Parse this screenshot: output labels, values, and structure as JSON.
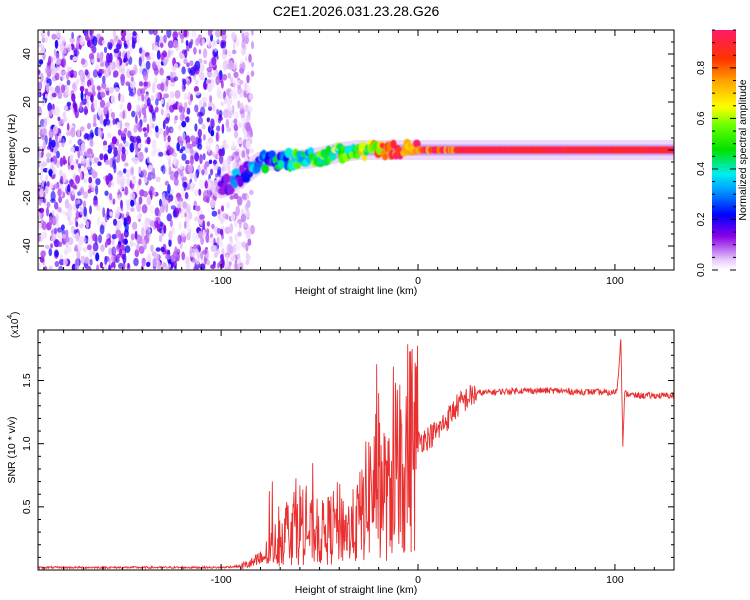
{
  "title": "C2E1.2026.031.23.28.G26",
  "chart_data": [
    {
      "type": "heatmap",
      "title": "C2E1.2026.031.23.28.G26",
      "xlabel": "Height of straight line (km)",
      "ylabel": "Frequency (Hz)",
      "xlim": [
        -193,
        130
      ],
      "ylim": [
        -50,
        50
      ],
      "xticks": [
        -100,
        0,
        100
      ],
      "yticks": [
        -40,
        -20,
        0,
        20,
        40
      ],
      "colorbar": {
        "label": "Normalized spectral amplitude",
        "range": [
          0,
          0.95
        ],
        "ticks": [
          0.0,
          0.2,
          0.4,
          0.6,
          0.8
        ],
        "tick_labels": [
          "0.0",
          "0.2",
          "0.4",
          "0.6",
          "0.8"
        ]
      },
      "noise_region_x": [
        -193,
        -90
      ],
      "signal_track": {
        "x": [
          -100,
          -90,
          -80,
          -70,
          -60,
          -50,
          -40,
          -30,
          -20,
          -10,
          0,
          10,
          20,
          40,
          60,
          80,
          100,
          130
        ],
        "frequency_hz": [
          -16,
          -11,
          -5,
          -4,
          -4,
          -3,
          -1,
          0,
          0,
          0,
          0,
          0,
          0,
          0,
          0,
          0,
          0,
          0
        ],
        "amplitude": [
          0.15,
          0.2,
          0.3,
          0.35,
          0.4,
          0.45,
          0.5,
          0.55,
          0.7,
          0.8,
          0.85,
          0.85,
          0.9,
          0.9,
          0.9,
          0.9,
          0.9,
          0.9
        ]
      }
    },
    {
      "type": "line",
      "xlabel": "Height of straight line (km)",
      "ylabel": "SNR (10 * v/v)",
      "y_scale_label": "(x10",
      "y_scale_exponent": "4",
      "xlim": [
        -193,
        130
      ],
      "ylim": [
        0,
        1.9
      ],
      "xticks": [
        -100,
        0,
        100
      ],
      "yticks": [
        0.5,
        1.0,
        1.5
      ],
      "ytick_labels": [
        "0.5",
        "1.0",
        "1.5"
      ],
      "color": "#e83030",
      "series": [
        {
          "name": "SNR",
          "x": [
            -193,
            -150,
            -100,
            -90,
            -85,
            -80,
            -75,
            -70,
            -65,
            -60,
            -55,
            -50,
            -45,
            -40,
            -35,
            -30,
            -25,
            -20,
            -15,
            -12,
            -10,
            -8,
            -5,
            -2,
            0,
            5,
            10,
            15,
            20,
            25,
            30,
            40,
            50,
            60,
            70,
            80,
            90,
            98,
            101,
            102,
            103,
            104,
            105,
            110,
            120,
            130
          ],
          "y": [
            0.02,
            0.02,
            0.02,
            0.03,
            0.05,
            0.08,
            0.16,
            0.25,
            0.35,
            0.38,
            0.3,
            0.28,
            0.32,
            0.38,
            0.3,
            0.4,
            0.6,
            0.75,
            0.55,
            0.85,
            0.88,
            0.92,
            0.98,
            1.0,
            1.02,
            1.05,
            1.1,
            1.2,
            1.3,
            1.36,
            1.4,
            1.41,
            1.42,
            1.42,
            1.42,
            1.41,
            1.41,
            1.4,
            1.42,
            1.6,
            1.85,
            1.0,
            1.4,
            1.38,
            1.38,
            1.38
          ]
        }
      ]
    }
  ]
}
